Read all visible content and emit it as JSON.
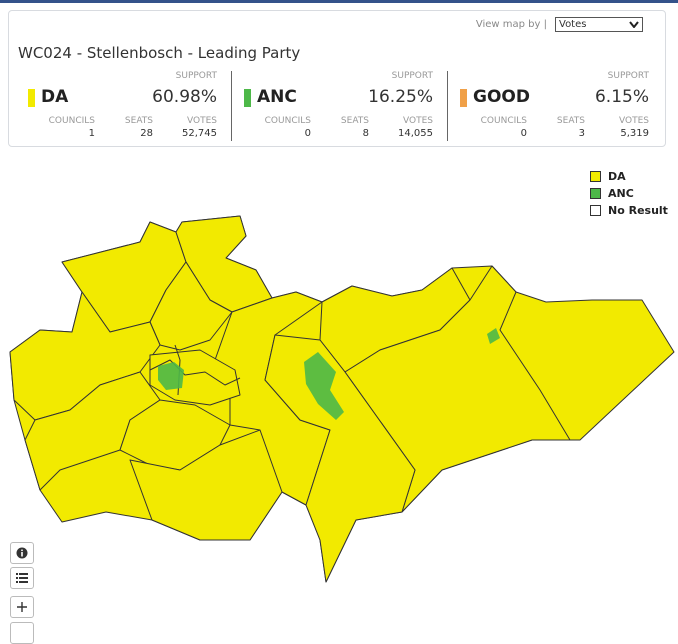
{
  "header": {
    "view_label": "View map by |",
    "view_option": "Votes",
    "title": "WC024 - Stellenbosch - Leading Party"
  },
  "parties": [
    {
      "name": "DA",
      "support_label": "SUPPORT",
      "support": "60.98%",
      "stats": [
        {
          "label": "COUNCILS",
          "value": "1"
        },
        {
          "label": "SEATS",
          "value": "28"
        },
        {
          "label": "VOTES",
          "value": "52,745"
        }
      ]
    },
    {
      "name": "ANC",
      "support_label": "SUPPORT",
      "support": "16.25%",
      "stats": [
        {
          "label": "COUNCILS",
          "value": "0"
        },
        {
          "label": "SEATS",
          "value": "8"
        },
        {
          "label": "VOTES",
          "value": "14,055"
        }
      ]
    },
    {
      "name": "GOOD",
      "support_label": "SUPPORT",
      "support": "6.15%",
      "stats": [
        {
          "label": "COUNCILS",
          "value": "0"
        },
        {
          "label": "SEATS",
          "value": "3"
        },
        {
          "label": "VOTES",
          "value": "5,319"
        }
      ]
    }
  ],
  "legend": [
    {
      "label": "DA"
    },
    {
      "label": "ANC"
    },
    {
      "label": "No Result"
    }
  ]
}
